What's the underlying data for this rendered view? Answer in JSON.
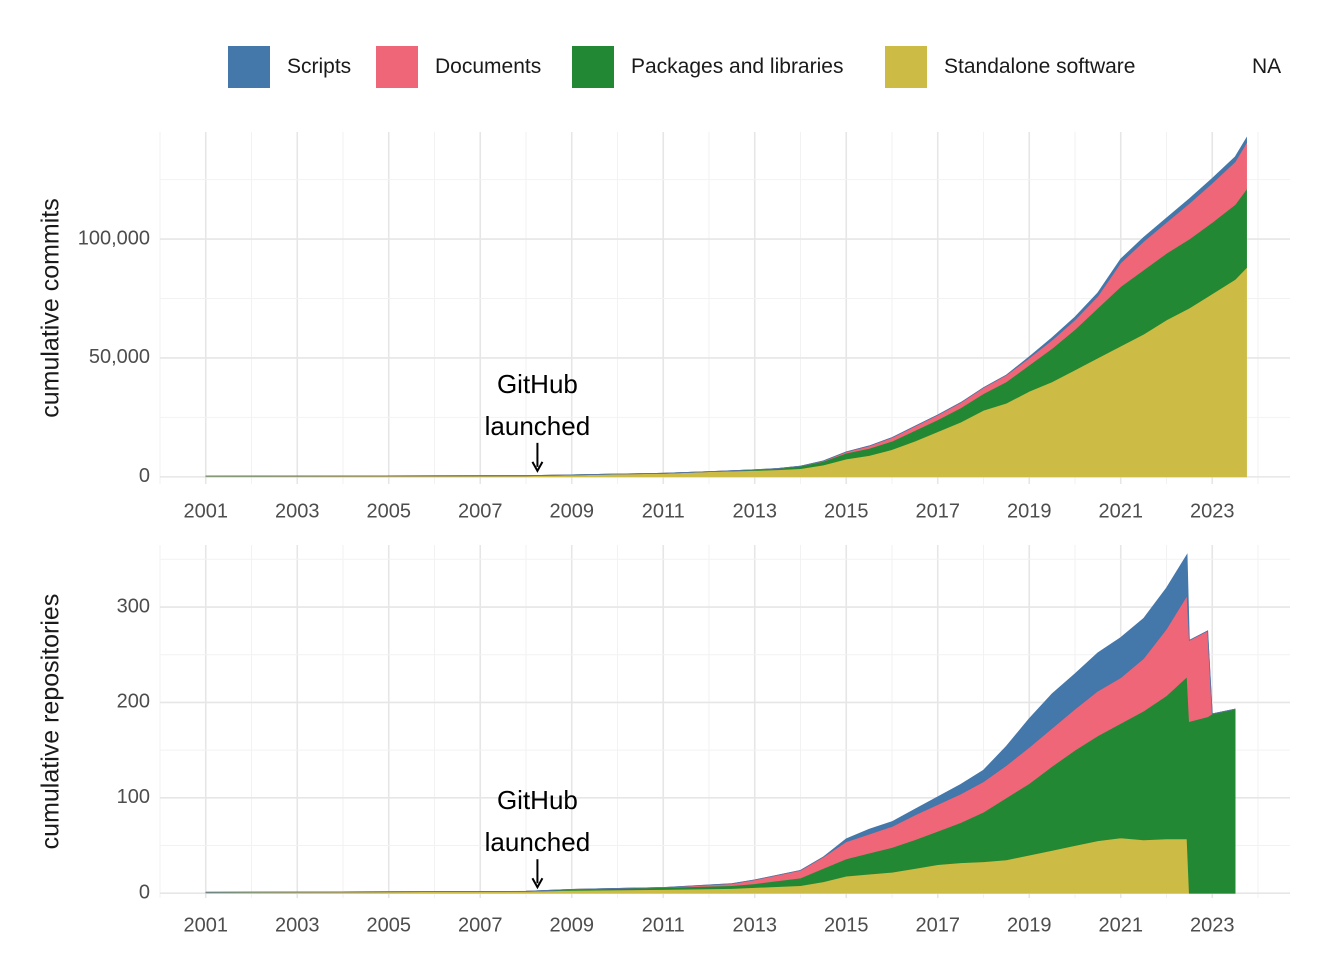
{
  "legend": {
    "items": [
      {
        "label": "Scripts",
        "color": "#4477AA"
      },
      {
        "label": "Documents",
        "color": "#EE6677"
      },
      {
        "label": "Packages and libraries",
        "color": "#228833"
      },
      {
        "label": "Standalone software",
        "color": "#CCBB44"
      },
      {
        "label": "NA",
        "color": "#ffffff"
      }
    ]
  },
  "chart_data": [
    {
      "type": "area",
      "stacked": true,
      "ylabel": "cumulative commits",
      "xlim": [
        2000.0,
        2024.7
      ],
      "ylim": [
        -3000,
        145000
      ],
      "xticks": [
        2001,
        2003,
        2005,
        2007,
        2009,
        2011,
        2013,
        2015,
        2017,
        2019,
        2021,
        2023
      ],
      "xtick_labels": [
        "2001",
        "2003",
        "2005",
        "2007",
        "2009",
        "2011",
        "2013",
        "2015",
        "2017",
        "2019",
        "2021",
        "2023"
      ],
      "yticks": [
        0,
        50000,
        100000
      ],
      "ytick_labels": [
        "0",
        "50,000",
        "100,000"
      ],
      "grid": true,
      "annotation": {
        "lines": [
          "GitHub",
          "launched"
        ],
        "x": 2008.25
      },
      "x": [
        2001,
        2008,
        2009,
        2010,
        2011,
        2012,
        2013,
        2013.5,
        2014,
        2014.5,
        2015,
        2015.5,
        2016,
        2016.5,
        2017,
        2017.5,
        2018,
        2018.5,
        2019,
        2019.5,
        2020,
        2020.5,
        2021,
        2021.5,
        2022,
        2022.5,
        2023,
        2023.5,
        2023.75
      ],
      "series": [
        {
          "name": "Standalone software",
          "color": "#CCBB44",
          "values": [
            300,
            500,
            800,
            1200,
            1500,
            2200,
            2700,
            3000,
            3500,
            5000,
            7500,
            9000,
            11500,
            15000,
            19000,
            23000,
            28000,
            31000,
            36000,
            40000,
            45000,
            50000,
            55000,
            60000,
            66000,
            71000,
            77000,
            83000,
            88000
          ]
        },
        {
          "name": "Packages and libraries",
          "color": "#228833",
          "values": [
            0,
            0,
            0,
            0,
            0,
            0,
            300,
            500,
            1000,
            1500,
            2500,
            3000,
            3500,
            4500,
            5000,
            6000,
            7000,
            9000,
            11000,
            14000,
            17000,
            21000,
            25000,
            27000,
            28000,
            29000,
            30000,
            31500,
            33000
          ]
        },
        {
          "name": "Documents",
          "color": "#EE6677",
          "values": [
            0,
            0,
            0,
            0,
            0,
            0,
            0,
            0,
            0,
            200,
            500,
            1000,
            1500,
            1800,
            2000,
            2200,
            2500,
            2800,
            3000,
            3500,
            4000,
            5000,
            10000,
            12000,
            13000,
            15000,
            16500,
            18000,
            19500
          ]
        },
        {
          "name": "Scripts",
          "color": "#4477AA",
          "values": [
            0,
            0,
            0,
            0,
            0,
            0,
            0,
            0,
            0,
            0,
            0,
            0,
            0,
            0,
            0,
            0,
            0,
            0,
            500,
            1000,
            1200,
            1400,
            1600,
            1700,
            1800,
            1900,
            2000,
            2000,
            2000
          ]
        }
      ]
    },
    {
      "type": "area",
      "stacked": true,
      "ylabel": "cumulative repositories",
      "xlim": [
        2000.0,
        2024.7
      ],
      "ylim": [
        -5,
        365
      ],
      "xticks": [
        2001,
        2003,
        2005,
        2007,
        2009,
        2011,
        2013,
        2015,
        2017,
        2019,
        2021,
        2023
      ],
      "xtick_labels": [
        "2001",
        "2003",
        "2005",
        "2007",
        "2009",
        "2011",
        "2013",
        "2015",
        "2017",
        "2019",
        "2021",
        "2023"
      ],
      "yticks": [
        0,
        100,
        200,
        300
      ],
      "ytick_labels": [
        "0",
        "100",
        "200",
        "300"
      ],
      "grid": true,
      "annotation": {
        "lines": [
          "GitHub",
          "launched"
        ],
        "x": 2008.25
      },
      "x": [
        2001,
        2008,
        2009,
        2011,
        2012.5,
        2013,
        2014,
        2014.5,
        2015,
        2015.5,
        2016,
        2016.5,
        2017,
        2017.5,
        2018,
        2018.5,
        2019,
        2019.5,
        2020,
        2020.5,
        2021,
        2021.5,
        2022,
        2022.45,
        2022.5,
        2022.9,
        2023,
        2023.5
      ],
      "series": [
        {
          "name": "Standalone software",
          "color": "#CCBB44",
          "values": [
            1,
            2,
            3,
            4,
            5,
            6,
            8,
            12,
            18,
            20,
            22,
            26,
            30,
            32,
            33,
            35,
            40,
            45,
            50,
            55,
            58,
            56,
            57,
            57,
            0,
            0,
            0,
            0
          ]
        },
        {
          "name": "Packages and libraries",
          "color": "#228833",
          "values": [
            0,
            0,
            1,
            2,
            3,
            4,
            8,
            14,
            18,
            22,
            26,
            30,
            35,
            42,
            52,
            65,
            75,
            88,
            100,
            110,
            120,
            135,
            150,
            170,
            180,
            185,
            188,
            193
          ]
        },
        {
          "name": "Documents",
          "color": "#EE6677",
          "values": [
            0,
            0,
            0,
            0,
            2,
            4,
            8,
            12,
            18,
            20,
            22,
            26,
            28,
            30,
            32,
            34,
            38,
            40,
            43,
            47,
            48,
            55,
            70,
            85,
            85,
            90,
            0,
            0
          ]
        },
        {
          "name": "Scripts",
          "color": "#4477AA",
          "values": [
            0,
            0,
            0,
            0,
            0,
            0,
            0,
            0,
            3,
            5,
            5,
            6,
            8,
            10,
            12,
            20,
            30,
            36,
            37,
            40,
            42,
            42,
            43,
            43,
            0,
            0,
            0,
            0
          ]
        }
      ]
    }
  ]
}
